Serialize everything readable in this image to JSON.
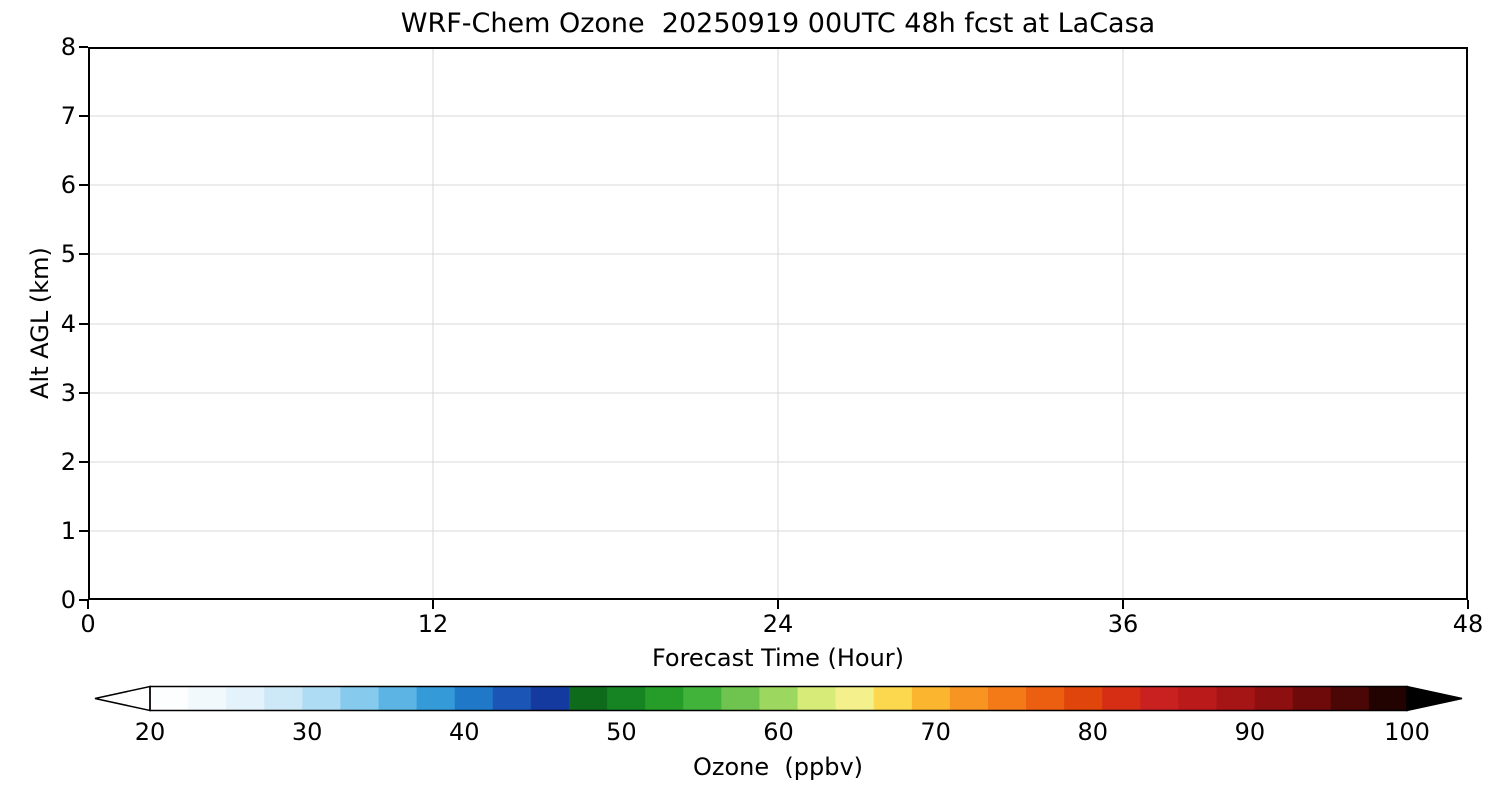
{
  "chart_data": {
    "type": "heatmap",
    "title": "WRF-Chem Ozone  20250919 00UTC 48h fcst at LaCasa",
    "xlabel": "Forecast Time (Hour)",
    "ylabel": "Alt AGL (km)",
    "xlim": [
      0,
      48
    ],
    "ylim": [
      0,
      8
    ],
    "x_ticks": [
      0,
      12,
      24,
      36,
      48
    ],
    "y_ticks": [
      0,
      1,
      2,
      3,
      4,
      5,
      6,
      7,
      8
    ],
    "grid": true,
    "grid_color": "#d8d8d8",
    "values": [],
    "colorbar": {
      "label": "Ozone  (ppbv)",
      "ticks": [
        20,
        30,
        40,
        50,
        60,
        70,
        80,
        90,
        100
      ],
      "min": 20,
      "max": 100,
      "extend": "both",
      "under_color": "#ffffff",
      "over_color": "#000000",
      "colors": [
        "#fdfeff",
        "#f2f9fd",
        "#e3f2fb",
        "#cde9f8",
        "#aedcf4",
        "#86cbed",
        "#5cb4e4",
        "#349ad8",
        "#1f78c8",
        "#1b55b5",
        "#14399f",
        "#0f6b1c",
        "#168422",
        "#259d28",
        "#41b33a",
        "#6ec44e",
        "#9cd75f",
        "#d7ec78",
        "#f4f18c",
        "#fcd84f",
        "#fbb52f",
        "#f89522",
        "#f47a18",
        "#ec5f10",
        "#e0450b",
        "#d62d15",
        "#c92020",
        "#ba1a1a",
        "#a61515",
        "#8d0f0f",
        "#6e0a0a",
        "#4b0606",
        "#230202"
      ]
    }
  }
}
